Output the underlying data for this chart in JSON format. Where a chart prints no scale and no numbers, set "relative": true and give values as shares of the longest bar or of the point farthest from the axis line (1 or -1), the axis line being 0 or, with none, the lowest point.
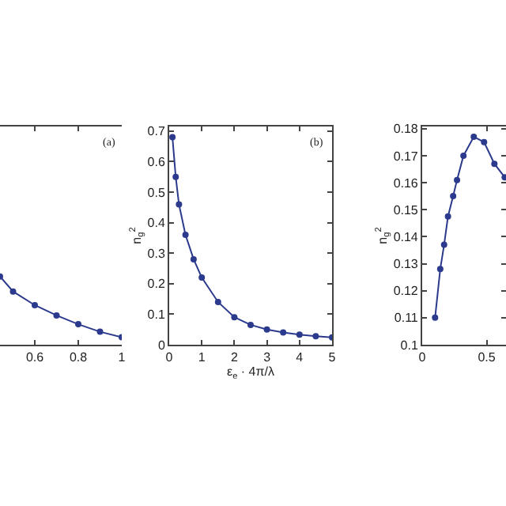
{
  "chart_data": [
    {
      "type": "line",
      "relative": true,
      "x": [
        0.44,
        0.5,
        0.6,
        0.7,
        0.8,
        0.9,
        1.0
      ],
      "series": [
        {
          "color": "#2b3a8c",
          "values": [
            1,
            0.78,
            0.58,
            0.43,
            0.3,
            0.19,
            0.11
          ]
        }
      ],
      "xlim": [
        0.44,
        1.0
      ],
      "xticks": [
        0.6,
        0.8,
        1
      ],
      "marker": "circle",
      "annotations": [
        "(a)"
      ]
    },
    {
      "type": "line",
      "x": [
        0.1,
        0.2,
        0.3,
        0.5,
        0.75,
        1,
        1.5,
        2,
        2.5,
        3,
        3.5,
        4,
        4.5,
        5
      ],
      "series": [
        {
          "color": "#2b3a8c",
          "values": [
            0.68,
            0.55,
            0.46,
            0.36,
            0.28,
            0.22,
            0.14,
            0.09,
            0.065,
            0.05,
            0.04,
            0.033,
            0.028,
            0.024
          ]
        }
      ],
      "xlim": [
        0,
        5
      ],
      "ylim": [
        0,
        0.715
      ],
      "xticks": [
        0,
        1,
        2,
        3,
        4,
        5
      ],
      "yticks": [
        0,
        0.1,
        0.2,
        0.3,
        0.4,
        0.5,
        0.6,
        0.7
      ],
      "xlabel": "ε$_{e}$ · 4π/λ",
      "ylabel": "n$_{g}$$^{2}$",
      "marker": "circle",
      "annotations": [
        "(b)"
      ]
    },
    {
      "type": "line",
      "x": [
        0.1,
        0.14,
        0.17,
        0.2,
        0.24,
        0.27,
        0.32,
        0.4,
        0.48,
        0.56,
        0.64
      ],
      "series": [
        {
          "color": "#2b3a8c",
          "values": [
            0.11,
            0.128,
            0.137,
            0.1475,
            0.155,
            0.161,
            0.17,
            0.177,
            0.175,
            0.167,
            0.162
          ]
        }
      ],
      "xlim": [
        0,
        0.65
      ],
      "ylim": [
        0.1,
        0.1808
      ],
      "xticks": [
        0,
        0.5
      ],
      "yticks": [
        0.1,
        0.11,
        0.12,
        0.13,
        0.14,
        0.15,
        0.16,
        0.17,
        0.18
      ],
      "ylabel": "n$_{g}$$^{2}$",
      "marker": "circle"
    }
  ]
}
